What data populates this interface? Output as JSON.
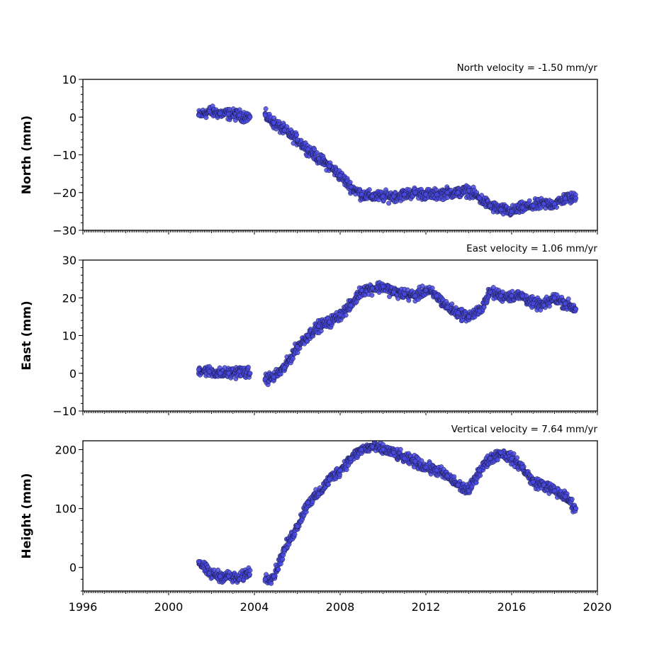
{
  "chart_data": [
    {
      "type": "scatter",
      "title": "North velocity = -1.50 mm/yr",
      "xlabel": "",
      "ylabel": "North (mm)",
      "xlim": [
        1996,
        2020
      ],
      "ylim": [
        -30,
        10
      ],
      "yticks": [
        10,
        0,
        -10,
        -20,
        -30
      ],
      "ytick_labels": [
        "10",
        "0",
        "−10",
        "−20",
        "−30"
      ],
      "xticks": [
        1996,
        2000,
        2004,
        2008,
        2012,
        2016,
        2020
      ],
      "xtick_labels": [],
      "marker_color": "#4a4ae8",
      "series": [
        {
          "x": [
            2001.4,
            2001.9,
            2002.4,
            2002.8,
            2003.3,
            2003.8,
            2004.5,
            2004.9,
            2005.4,
            2006.0,
            2006.5,
            2007.0,
            2007.5,
            2008.0,
            2008.5,
            2009.0,
            2009.5,
            2010.0,
            2010.5,
            2011.0,
            2011.5,
            2012.0,
            2012.5,
            2013.0,
            2013.5,
            2014.0,
            2014.5,
            2015.0,
            2015.5,
            2016.0,
            2016.5,
            2017.0,
            2017.5,
            2018.0,
            2018.5,
            2019.0
          ],
          "y": [
            0.5,
            1.5,
            1.0,
            0.8,
            0.5,
            0.0,
            0.5,
            -1.5,
            -3.5,
            -6.0,
            -8.5,
            -11.0,
            -13.0,
            -15.5,
            -18.5,
            -20.5,
            -21.0,
            -21.0,
            -21.0,
            -20.5,
            -20.0,
            -20.5,
            -20.5,
            -20.0,
            -20.0,
            -19.5,
            -21.5,
            -23.5,
            -24.5,
            -25.0,
            -24.0,
            -23.5,
            -23.0,
            -23.0,
            -21.5,
            -21.5
          ]
        }
      ]
    },
    {
      "type": "scatter",
      "title": "East velocity = 1.06 mm/yr",
      "xlabel": "",
      "ylabel": "East (mm)",
      "xlim": [
        1996,
        2020
      ],
      "ylim": [
        -10,
        30
      ],
      "yticks": [
        30,
        20,
        10,
        0,
        -10
      ],
      "ytick_labels": [
        "30",
        "20",
        "10",
        "0",
        "−10"
      ],
      "xticks": [
        1996,
        2000,
        2004,
        2008,
        2012,
        2016,
        2020
      ],
      "xtick_labels": [],
      "marker_color": "#4a4ae8",
      "series": [
        {
          "x": [
            2001.4,
            2001.9,
            2002.4,
            2002.8,
            2003.3,
            2003.8,
            2004.5,
            2004.9,
            2005.4,
            2006.0,
            2006.5,
            2007.0,
            2007.5,
            2008.0,
            2008.5,
            2009.0,
            2009.5,
            2010.0,
            2010.5,
            2011.0,
            2011.5,
            2012.0,
            2012.5,
            2013.0,
            2013.5,
            2014.0,
            2014.5,
            2015.0,
            2015.5,
            2016.0,
            2016.5,
            2017.0,
            2017.5,
            2018.0,
            2018.5,
            2019.0
          ],
          "y": [
            1.0,
            0.5,
            0.0,
            0.0,
            0.5,
            0.0,
            -1.5,
            -1.0,
            1.5,
            7.0,
            10.0,
            12.5,
            13.5,
            15.5,
            18.0,
            22.0,
            22.5,
            23.0,
            21.5,
            21.0,
            20.5,
            22.0,
            20.5,
            17.5,
            16.0,
            15.0,
            16.5,
            21.5,
            20.5,
            20.5,
            20.5,
            18.5,
            18.0,
            20.0,
            18.5,
            17.0
          ]
        }
      ]
    },
    {
      "type": "scatter",
      "title": "Vertical velocity = 7.64 mm/yr",
      "xlabel": "",
      "ylabel": "Height (mm)",
      "xlim": [
        1996,
        2020
      ],
      "ylim": [
        -40,
        215
      ],
      "yticks": [
        200,
        100,
        0
      ],
      "ytick_labels": [
        "200",
        "100",
        "0"
      ],
      "xticks": [
        1996,
        2000,
        2004,
        2008,
        2012,
        2016,
        2020
      ],
      "xtick_labels": [
        "1996",
        "2000",
        "2004",
        "2008",
        "2012",
        "2016",
        "2020"
      ],
      "marker_color": "#4a4ae8",
      "series": [
        {
          "x": [
            2001.4,
            2001.9,
            2002.4,
            2002.8,
            2003.3,
            2003.8,
            2004.5,
            2004.9,
            2005.4,
            2006.0,
            2006.5,
            2007.0,
            2007.5,
            2008.0,
            2008.5,
            2009.0,
            2009.5,
            2010.0,
            2010.5,
            2011.0,
            2011.5,
            2012.0,
            2012.5,
            2013.0,
            2013.5,
            2014.0,
            2014.5,
            2015.0,
            2015.5,
            2016.0,
            2016.5,
            2017.0,
            2017.5,
            2018.0,
            2018.5,
            2019.0
          ],
          "y": [
            10,
            -10,
            -15,
            -15,
            -20,
            -5,
            -20,
            -15,
            30,
            70,
            110,
            125,
            150,
            165,
            185,
            200,
            205,
            200,
            195,
            185,
            180,
            170,
            165,
            155,
            140,
            130,
            165,
            185,
            195,
            185,
            170,
            145,
            140,
            130,
            120,
            100
          ]
        }
      ]
    }
  ]
}
